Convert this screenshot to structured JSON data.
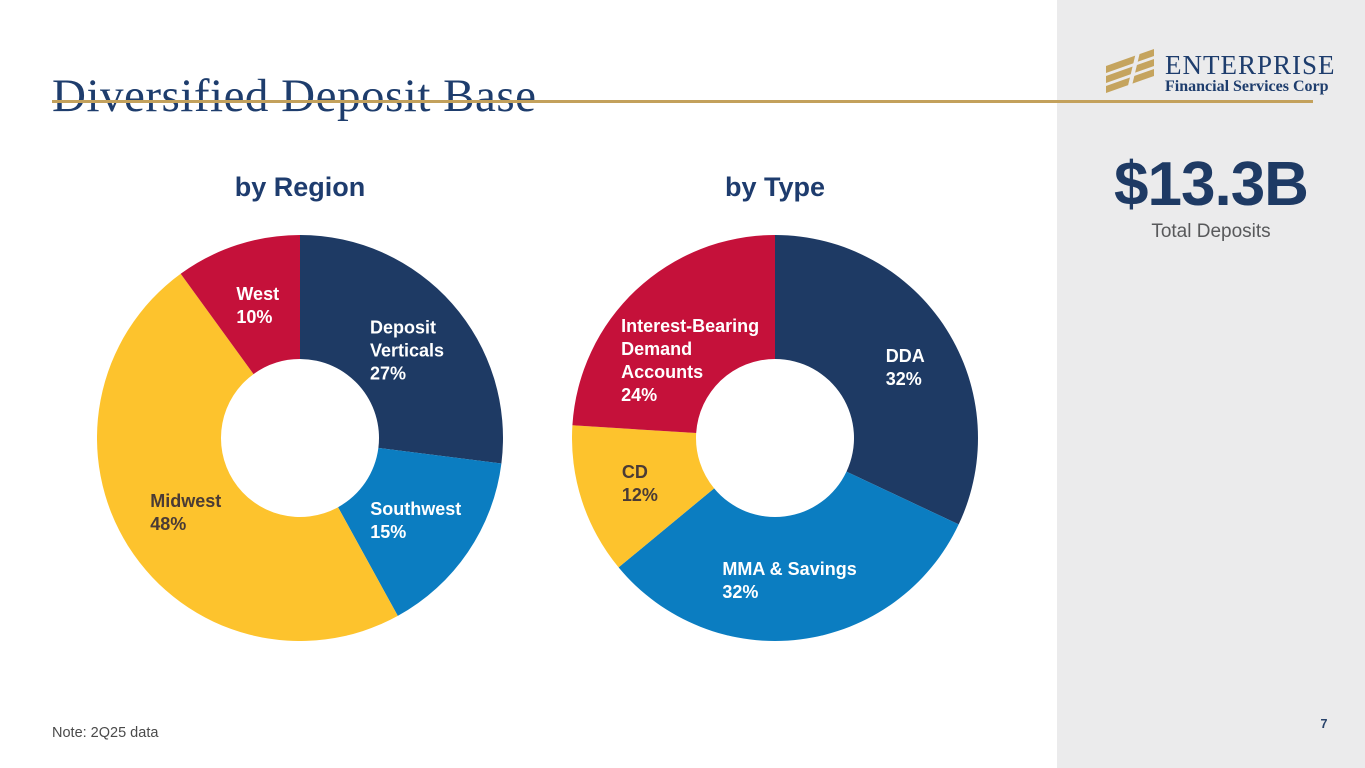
{
  "slide": {
    "title": "Diversified Deposit Base",
    "note": "Note: 2Q25 data",
    "page_number": "7"
  },
  "logo": {
    "name": "ENTERPRISE",
    "subtitle": "Financial Services Corp",
    "icon": "gold-diagonal-stripes-icon"
  },
  "stat": {
    "value": "$13.3B",
    "label": "Total Deposits"
  },
  "colors": {
    "navy": "#1E3A64",
    "blue": "#0B7DC1",
    "gold": "#FDC32D",
    "red": "#C5113A",
    "accent_line": "#C3A15C",
    "sidebar_bg": "#EBEBEC",
    "title_text": "#1E3D6D",
    "dark_slice_label": "#4A3B35",
    "gray_text": "#58595B"
  },
  "chart_data": [
    {
      "type": "pie",
      "donut": true,
      "title": "by Region",
      "legend_position": "on-slice",
      "start_angle_deg": 0,
      "direction": "clockwise",
      "series": [
        {
          "label": "Deposit Verticals",
          "lines": [
            "Deposit",
            "Verticals"
          ],
          "value": 27,
          "color": "#1E3A64",
          "text_color": "#FFFFFF",
          "dx": 2,
          "dy": 6
        },
        {
          "label": "Southwest",
          "lines": [
            "Southwest"
          ],
          "value": 15,
          "color": "#0B7DC1",
          "text_color": "#FFFFFF",
          "dx": 0,
          "dy": 4
        },
        {
          "label": "Midwest",
          "lines": [
            "Midwest"
          ],
          "value": 48,
          "color": "#FDC32D",
          "text_color": "#4A3B35",
          "dx": 4,
          "dy": 0
        },
        {
          "label": "West",
          "lines": [
            "West"
          ],
          "value": 10,
          "color": "#C5113A",
          "text_color": "#FFFFFF",
          "dx": 1,
          "dy": 1
        }
      ]
    },
    {
      "type": "pie",
      "donut": true,
      "title": "by Type",
      "legend_position": "on-slice",
      "start_angle_deg": 0,
      "direction": "clockwise",
      "series": [
        {
          "label": "DDA",
          "lines": [
            "DDA"
          ],
          "value": 32,
          "color": "#1E3A64",
          "text_color": "#FFFFFF",
          "dx": 12,
          "dy": 5
        },
        {
          "label": "MMA & Savings",
          "lines": [
            "MMA & Savings"
          ],
          "value": 32,
          "color": "#0B7DC1",
          "text_color": "#FFFFFF",
          "dx": -3,
          "dy": 4
        },
        {
          "label": "CD",
          "lines": [
            "CD"
          ],
          "value": 12,
          "color": "#FDC32D",
          "text_color": "#4A3B35",
          "dx": -2,
          "dy": 3
        },
        {
          "label": "Interest-Bearing Demand Accounts",
          "lines": [
            "Interest-Bearing",
            "Demand",
            "Accounts"
          ],
          "value": 24,
          "color": "#C5113A",
          "text_color": "#FFFFFF",
          "dx": 11,
          "dy": 25
        }
      ]
    }
  ]
}
